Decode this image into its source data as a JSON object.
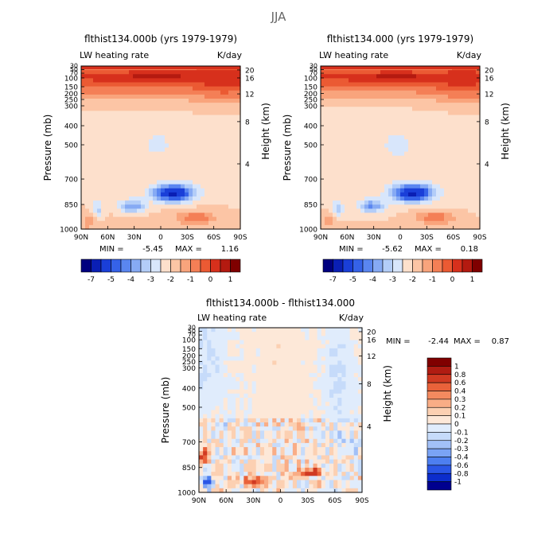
{
  "page_title": "JJA",
  "colors": {
    "ramp_main": [
      "#00007f",
      "#0a1fb4",
      "#1a3fd8",
      "#3562e8",
      "#5a86f0",
      "#86aaf4",
      "#b3cdf8",
      "#d8e6fb",
      "#fde0cc",
      "#fcc5a5",
      "#f9a47c",
      "#f47f56",
      "#eb5a33",
      "#d7301c",
      "#b41a10",
      "#7f0000"
    ],
    "ramp_diff": [
      "#00008f",
      "#0c2dcc",
      "#2a56e6",
      "#4d7ff0",
      "#7aa3f5",
      "#a2c0f7",
      "#c6dbfa",
      "#e0ecfc",
      "#fde8d8",
      "#fcd0b2",
      "#f9ad86",
      "#f48a5f",
      "#e9623a",
      "#d03a22",
      "#b01c12",
      "#800000"
    ]
  },
  "chart_data": [
    {
      "type": "heatmap",
      "id": "left",
      "title": "flthist134.000b (yrs 1979-1979)",
      "left_label": "LW heating rate",
      "units": "K/day",
      "xlabel": "",
      "ylabel": "Pressure (mb)",
      "ylabel_right": "Height (km)",
      "x_ticks": [
        "90N",
        "60N",
        "30N",
        "0",
        "30S",
        "60S",
        "90S"
      ],
      "y_ticks": [
        "30",
        "50",
        "70",
        "100",
        "150",
        "200",
        "250",
        "300",
        "400",
        "500",
        "700",
        "850",
        "1000"
      ],
      "height_ticks": [
        "20",
        "16",
        "12",
        "8",
        "4"
      ],
      "min_label": "MIN =",
      "min_value": "-5.45",
      "max_label": "MAX =",
      "max_value": "1.16",
      "colorbar_labels": [
        "-7",
        "-5",
        "-4",
        "-3",
        "-2",
        "-1",
        "0",
        "1"
      ]
    },
    {
      "type": "heatmap",
      "id": "right",
      "title": "flthist134.000 (yrs 1979-1979)",
      "left_label": "LW heating rate",
      "units": "K/day",
      "xlabel": "",
      "ylabel": "Pressure (mb)",
      "ylabel_right": "Height (km)",
      "x_ticks": [
        "90N",
        "60N",
        "30N",
        "0",
        "30S",
        "60S",
        "90S"
      ],
      "y_ticks": [
        "30",
        "50",
        "70",
        "100",
        "150",
        "200",
        "250",
        "300",
        "400",
        "500",
        "700",
        "850",
        "1000"
      ],
      "height_ticks": [
        "20",
        "16",
        "12",
        "8",
        "4"
      ],
      "min_label": "MIN =",
      "min_value": "-5.62",
      "max_label": "MAX =",
      "max_value": "0.18",
      "colorbar_labels": [
        "-7",
        "-5",
        "-4",
        "-3",
        "-2",
        "-1",
        "0",
        "1"
      ]
    },
    {
      "type": "heatmap",
      "id": "diff",
      "title": "flthist134.000b - flthist134.000",
      "left_label": "LW heating rate",
      "units": "K/day",
      "xlabel": "",
      "ylabel": "Pressure (mb)",
      "ylabel_right": "Height (km)",
      "x_ticks": [
        "90N",
        "60N",
        "30N",
        "0",
        "30S",
        "60S",
        "90S"
      ],
      "y_ticks": [
        "30",
        "50",
        "70",
        "100",
        "150",
        "200",
        "250",
        "300",
        "400",
        "500",
        "700",
        "850",
        "1000"
      ],
      "height_ticks": [
        "20",
        "16",
        "12",
        "8",
        "4"
      ],
      "min_label": "MIN =",
      "min_value": "-2.44",
      "max_label": "MAX =",
      "max_value": "0.87",
      "colorbar_labels": [
        "1",
        "0.8",
        "0.6",
        "0.4",
        "0.3",
        "0.2",
        "0.1",
        "0",
        "-0.1",
        "-0.2",
        "-0.3",
        "-0.4",
        "-0.6",
        "-0.8",
        "-1"
      ]
    }
  ]
}
